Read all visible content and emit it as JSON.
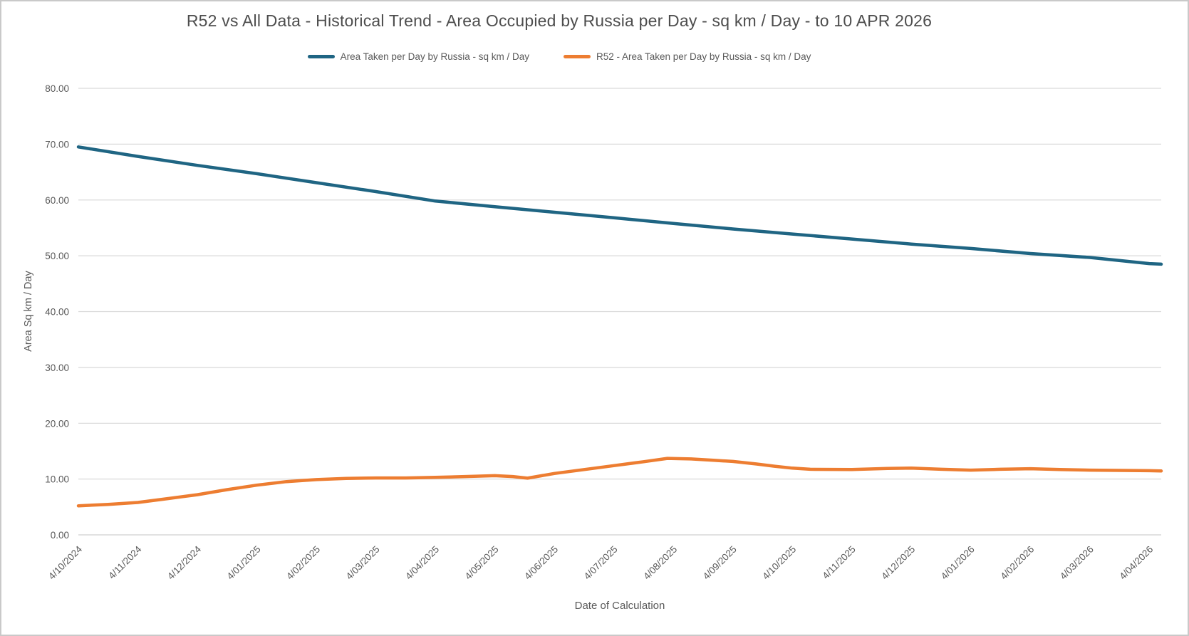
{
  "title": "R52 vs All Data - Historical Trend - Area Occupied by Russia per Day - sq km / Day - to 10 APR 2026",
  "legend": [
    {
      "label": "Area Taken per Day by Russia - sq km / Day",
      "color": "#1f6583"
    },
    {
      "label": "R52 - Area Taken per Day by Russia - sq km / Day",
      "color": "#ed7d31"
    }
  ],
  "chart_data": {
    "type": "line",
    "title": "R52 vs All Data - Historical Trend - Area Occupied by Russia per Day - sq km / Day - to 10 APR 2026",
    "xlabel": "Date of Calculation",
    "ylabel": "Area Sq km / Day",
    "ylim": [
      0,
      80
    ],
    "ytick_step": 10,
    "ytick_labels": [
      "0.00",
      "10.00",
      "20.00",
      "30.00",
      "40.00",
      "50.00",
      "60.00",
      "70.00",
      "80.00"
    ],
    "grid": "horizontal",
    "legend_position": "top-center",
    "x_tick_rotation_deg": 45,
    "x_end_index": 18.2,
    "x_end_note": "to 10 APR 2026",
    "categories": [
      "4/10/2024",
      "4/11/2024",
      "4/12/2024",
      "4/01/2025",
      "4/02/2025",
      "4/03/2025",
      "4/04/2025",
      "4/05/2025",
      "4/06/2025",
      "4/07/2025",
      "4/08/2025",
      "4/09/2025",
      "4/10/2025",
      "4/11/2025",
      "4/12/2025",
      "4/01/2026",
      "4/02/2026",
      "4/03/2026",
      "4/04/2026"
    ],
    "series": [
      {
        "id": "all-data",
        "name": "Area Taken per Day by Russia - sq km / Day",
        "color": "#1f6583",
        "values": [
          69.5,
          67.8,
          66.2,
          64.7,
          63.1,
          61.5,
          59.8,
          58.8,
          57.8,
          56.8,
          55.8,
          54.8,
          53.9,
          53.0,
          52.1,
          51.3,
          50.4,
          49.7,
          48.6
        ],
        "end_value": 48.5,
        "points": [
          [
            0,
            69.5
          ],
          [
            1,
            67.8
          ],
          [
            2,
            66.2
          ],
          [
            3,
            64.7
          ],
          [
            4,
            63.1
          ],
          [
            5,
            61.5
          ],
          [
            6,
            59.8
          ],
          [
            7,
            58.8
          ],
          [
            7.5,
            58.3
          ],
          [
            8,
            57.8
          ],
          [
            9,
            56.8
          ],
          [
            10,
            55.8
          ],
          [
            11,
            54.8
          ],
          [
            12,
            53.9
          ],
          [
            13,
            53.0
          ],
          [
            14,
            52.1
          ],
          [
            15,
            51.3
          ],
          [
            16,
            50.4
          ],
          [
            17,
            49.7
          ],
          [
            18,
            48.6
          ],
          [
            18.2,
            48.5
          ]
        ]
      },
      {
        "id": "r52",
        "name": "R52 - Area Taken per Day by Russia - sq km / Day",
        "color": "#ed7d31",
        "values": [
          5.2,
          5.8,
          7.2,
          8.9,
          9.9,
          10.2,
          10.3,
          10.6,
          11.0,
          12.4,
          13.6,
          13.15,
          11.95,
          11.7,
          11.95,
          11.6,
          11.85,
          11.6,
          11.5
        ],
        "end_value": 11.45,
        "points": [
          [
            0,
            5.2
          ],
          [
            0.5,
            5.45
          ],
          [
            1,
            5.8
          ],
          [
            1.5,
            6.5
          ],
          [
            2,
            7.2
          ],
          [
            2.5,
            8.1
          ],
          [
            3,
            8.9
          ],
          [
            3.5,
            9.55
          ],
          [
            4,
            9.9
          ],
          [
            4.5,
            10.1
          ],
          [
            5,
            10.2
          ],
          [
            5.5,
            10.2
          ],
          [
            6,
            10.3
          ],
          [
            6.5,
            10.45
          ],
          [
            7,
            10.6
          ],
          [
            7.3,
            10.45
          ],
          [
            7.55,
            10.15
          ],
          [
            8,
            11.0
          ],
          [
            8.5,
            11.7
          ],
          [
            9,
            12.4
          ],
          [
            9.5,
            13.1
          ],
          [
            9.9,
            13.7
          ],
          [
            10.3,
            13.6
          ],
          [
            10.7,
            13.35
          ],
          [
            11,
            13.15
          ],
          [
            11.4,
            12.7
          ],
          [
            11.7,
            12.3
          ],
          [
            12,
            11.95
          ],
          [
            12.3,
            11.75
          ],
          [
            13,
            11.7
          ],
          [
            13.6,
            11.9
          ],
          [
            14,
            11.95
          ],
          [
            14.5,
            11.75
          ],
          [
            15,
            11.6
          ],
          [
            15.5,
            11.75
          ],
          [
            16,
            11.85
          ],
          [
            16.5,
            11.7
          ],
          [
            17,
            11.6
          ],
          [
            17.5,
            11.55
          ],
          [
            18,
            11.5
          ],
          [
            18.2,
            11.45
          ]
        ]
      }
    ]
  }
}
